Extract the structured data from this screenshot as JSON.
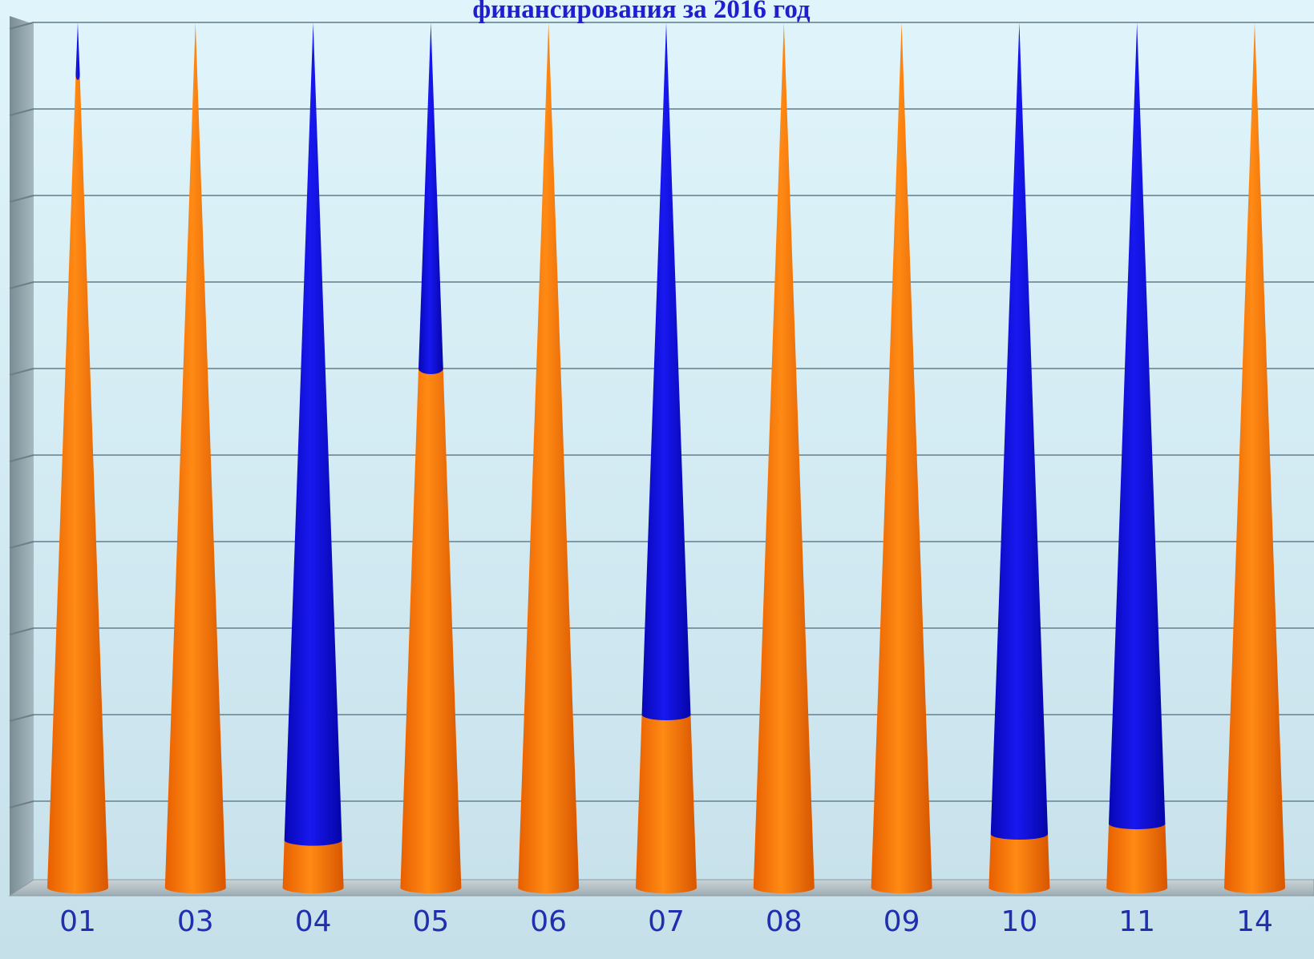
{
  "chart_data": {
    "type": "bar",
    "subtype": "stacked-cone-100-percent",
    "title": "финансирования за 2016 год",
    "xlabel": "",
    "ylabel": "",
    "ylim": [
      0,
      100
    ],
    "grid": true,
    "legend": "none",
    "categories": [
      "01",
      "03",
      "04",
      "05",
      "06",
      "07",
      "08",
      "09",
      "10",
      "11",
      "14"
    ],
    "series": [
      {
        "color": "#ff7a00",
        "values": [
          94,
          100,
          5.5,
          60,
          100,
          20,
          100,
          100,
          6.2,
          7.4,
          100
        ]
      },
      {
        "color": "#0a0ad8",
        "values": [
          6,
          0,
          94.5,
          40,
          0,
          80,
          0,
          0,
          93.8,
          92.6,
          0
        ]
      }
    ]
  },
  "colors": {
    "plot_background_top": "#dff4fa",
    "plot_background_bottom": "#c8e2ec",
    "page_background": "#cfe5ee",
    "gridline": "#7f9aa4",
    "category_label": "#1f2fb0",
    "title": "#1f1fd0"
  }
}
